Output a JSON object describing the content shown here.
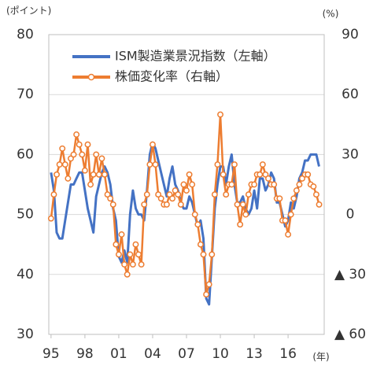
{
  "chart_data": {
    "type": "line",
    "y_label": "(ポイント)",
    "y2_label": "(%)",
    "x_label": "(年)",
    "x": [
      1995,
      1995.25,
      1995.5,
      1995.75,
      1996,
      1996.25,
      1996.5,
      1996.75,
      1997,
      1997.25,
      1997.5,
      1997.75,
      1998,
      1998.25,
      1998.5,
      1998.75,
      1999,
      1999.25,
      1999.5,
      1999.75,
      2000,
      2000.25,
      2000.5,
      2000.75,
      2001,
      2001.25,
      2001.5,
      2001.75,
      2002,
      2002.25,
      2002.5,
      2002.75,
      2003,
      2003.25,
      2003.5,
      2003.75,
      2004,
      2004.25,
      2004.5,
      2004.75,
      2005,
      2005.25,
      2005.5,
      2005.75,
      2006,
      2006.25,
      2006.5,
      2006.75,
      2007,
      2007.25,
      2007.5,
      2007.75,
      2008,
      2008.25,
      2008.5,
      2008.75,
      2009,
      2009.25,
      2009.5,
      2009.75,
      2010,
      2010.25,
      2010.5,
      2010.75,
      2011,
      2011.25,
      2011.5,
      2011.75,
      2012,
      2012.25,
      2012.5,
      2012.75,
      2013,
      2013.25,
      2013.5,
      2013.75,
      2014,
      2014.25,
      2014.5,
      2014.75,
      2015,
      2015.25,
      2015.5,
      2015.75,
      2016,
      2016.25,
      2016.5,
      2016.75,
      2017,
      2017.25,
      2017.5,
      2017.75,
      2018,
      2018.25,
      2018.5,
      2018.75
    ],
    "series": [
      {
        "name": "ISM製造業景況指数（左軸）",
        "color": "#4472c4",
        "values": [
          57,
          54,
          47,
          46,
          46,
          49,
          52,
          55,
          55,
          56,
          57,
          57,
          54,
          51,
          49,
          47,
          53,
          55,
          57,
          58,
          57,
          55,
          51,
          49,
          43,
          42,
          44,
          42,
          50,
          54,
          51,
          50,
          50,
          49,
          54,
          60,
          62,
          61,
          59,
          57,
          55,
          53,
          56,
          58,
          55,
          54,
          52,
          51,
          51,
          53,
          52,
          50,
          48,
          49,
          46,
          36,
          35,
          43,
          51,
          55,
          58,
          58,
          55,
          58,
          60,
          55,
          52,
          52,
          53,
          51,
          50,
          51,
          54,
          51,
          56,
          56,
          54,
          55,
          57,
          56,
          52,
          52,
          50,
          48,
          49,
          52,
          51,
          53,
          56,
          57,
          59,
          59,
          60,
          60,
          60,
          58
        ]
      },
      {
        "name": "株価変化率（右軸）",
        "color": "#ed7d31",
        "axis": "y2",
        "markers": true,
        "values": [
          -2,
          10,
          20,
          25,
          33,
          25,
          18,
          28,
          30,
          40,
          35,
          30,
          22,
          35,
          15,
          20,
          30,
          20,
          28,
          20,
          10,
          8,
          5,
          -15,
          -20,
          -10,
          -25,
          -30,
          -20,
          -25,
          -15,
          -20,
          -25,
          5,
          10,
          25,
          35,
          25,
          10,
          8,
          5,
          5,
          10,
          8,
          12,
          10,
          5,
          15,
          12,
          20,
          15,
          0,
          -5,
          -15,
          -20,
          -40,
          -35,
          -20,
          10,
          25,
          50,
          20,
          10,
          15,
          15,
          25,
          5,
          -5,
          5,
          0,
          10,
          15,
          15,
          20,
          20,
          25,
          20,
          18,
          15,
          15,
          8,
          8,
          -3,
          -3,
          -10,
          0,
          8,
          12,
          15,
          18,
          20,
          20,
          15,
          14,
          10,
          5
        ]
      }
    ],
    "xlim": [
      1994.8,
      2019.2
    ],
    "xticks": [
      {
        "value": 1995,
        "label": "95"
      },
      {
        "value": 1998,
        "label": "98"
      },
      {
        "value": 2001,
        "label": "01"
      },
      {
        "value": 2004,
        "label": "04"
      },
      {
        "value": 2007,
        "label": "07"
      },
      {
        "value": 2010,
        "label": "10"
      },
      {
        "value": 2013,
        "label": "13"
      },
      {
        "value": 2016,
        "label": "16"
      }
    ],
    "ylim": [
      30,
      80
    ],
    "yticks": [
      30,
      40,
      50,
      60,
      70,
      80
    ],
    "y2lim": [
      -60,
      90
    ],
    "y2ticks": [
      {
        "value": -60,
        "label": "▲ 60"
      },
      {
        "value": -30,
        "label": "▲ 30"
      },
      0,
      30,
      60,
      90
    ],
    "grid": true,
    "legend": "upper left"
  }
}
